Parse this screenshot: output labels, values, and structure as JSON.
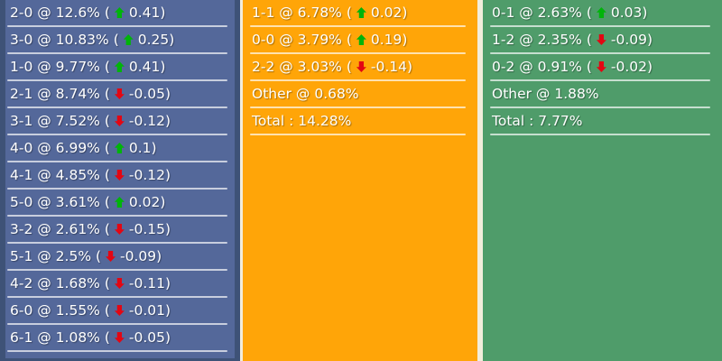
{
  "colors": {
    "page_background": "#f2eddc",
    "home_column_bg": "#54689a",
    "home_column_border": "#3e5277",
    "draw_column_bg": "#ffa508",
    "away_column_bg": "#4f9c6a",
    "text": "#ffffff",
    "divider": "rgba(255,255,255,0.68)",
    "trend_up": "#00b40a",
    "trend_down": "#e30613"
  },
  "columns": [
    {
      "id": "home",
      "name": "home-scores-column",
      "rows": [
        {
          "kind": "score",
          "pre": "2-0 @ 12.6% (",
          "dir": "up",
          "post": "0.41)"
        },
        {
          "kind": "score",
          "pre": "3-0 @ 10.83% (",
          "dir": "up",
          "post": "0.25)"
        },
        {
          "kind": "score",
          "pre": "1-0 @ 9.77% (",
          "dir": "up",
          "post": "0.41)"
        },
        {
          "kind": "score",
          "pre": "2-1 @ 8.74% (",
          "dir": "down",
          "post": "-0.05)"
        },
        {
          "kind": "score",
          "pre": "3-1 @ 7.52% (",
          "dir": "down",
          "post": "-0.12)"
        },
        {
          "kind": "score",
          "pre": "4-0 @ 6.99% (",
          "dir": "up",
          "post": "0.1)"
        },
        {
          "kind": "score",
          "pre": "4-1 @ 4.85% (",
          "dir": "down",
          "post": "-0.12)"
        },
        {
          "kind": "score",
          "pre": "5-0 @ 3.61% (",
          "dir": "up",
          "post": "0.02)"
        },
        {
          "kind": "score",
          "pre": "3-2 @ 2.61% (",
          "dir": "down",
          "post": "-0.15)"
        },
        {
          "kind": "score",
          "pre": "5-1 @ 2.5% (",
          "dir": "down",
          "post": "-0.09)"
        },
        {
          "kind": "score",
          "pre": "4-2 @ 1.68% (",
          "dir": "down",
          "post": "-0.11)"
        },
        {
          "kind": "score",
          "pre": "6-0 @ 1.55% (",
          "dir": "down",
          "post": "-0.01)"
        },
        {
          "kind": "score",
          "pre": "6-1 @ 1.08% (",
          "dir": "down",
          "post": "-0.05)"
        }
      ]
    },
    {
      "id": "draw",
      "name": "draw-scores-column",
      "rows": [
        {
          "kind": "score",
          "pre": "1-1 @ 6.78% (",
          "dir": "up",
          "post": "0.02)"
        },
        {
          "kind": "score",
          "pre": "0-0 @ 3.79% (",
          "dir": "up",
          "post": "0.19)"
        },
        {
          "kind": "score",
          "pre": "2-2 @ 3.03% (",
          "dir": "down",
          "post": "-0.14)"
        },
        {
          "kind": "other",
          "pre": "Other @ 0.68%"
        },
        {
          "kind": "total",
          "pre": "Total : 14.28%"
        }
      ]
    },
    {
      "id": "away",
      "name": "away-scores-column",
      "rows": [
        {
          "kind": "score",
          "pre": "0-1 @ 2.63% (",
          "dir": "up",
          "post": "0.03)"
        },
        {
          "kind": "score",
          "pre": "1-2 @ 2.35% (",
          "dir": "down",
          "post": "-0.09)"
        },
        {
          "kind": "score",
          "pre": "0-2 @ 0.91% (",
          "dir": "down",
          "post": "-0.02)"
        },
        {
          "kind": "other",
          "pre": "Other @ 1.88%"
        },
        {
          "kind": "total",
          "pre": "Total : 7.77%"
        }
      ]
    }
  ]
}
